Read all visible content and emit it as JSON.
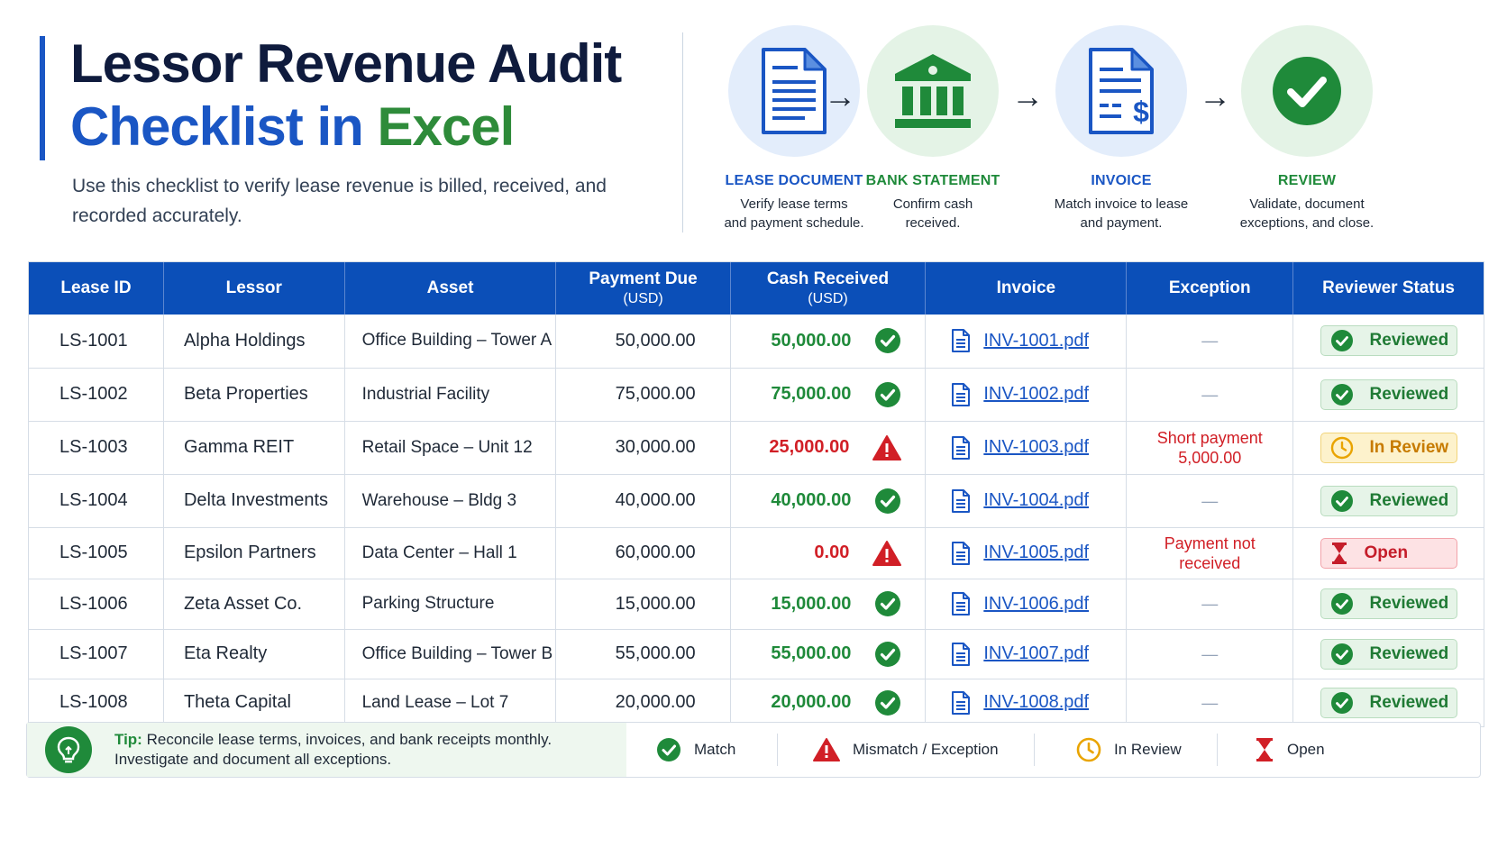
{
  "header": {
    "title_line1": "Lessor Revenue Audit",
    "title_line2_blue": "Checklist in ",
    "title_line2_green": "Excel",
    "subtitle": "Use this checklist to verify lease revenue is billed, received, and recorded accurately."
  },
  "workflow": [
    {
      "title": "LEASE DOCUMENT",
      "desc_line1": "Verify lease terms",
      "desc_line2": "and payment schedule.",
      "icon": "document-icon",
      "color": "#1a56c4"
    },
    {
      "title": "BANK STATEMENT",
      "desc_line1": "Confirm cash",
      "desc_line2": "received.",
      "icon": "bank-icon",
      "color": "#1f8a3a"
    },
    {
      "title": "INVOICE",
      "desc_line1": "Match invoice to lease",
      "desc_line2": "and payment.",
      "icon": "invoice-icon",
      "color": "#1a56c4"
    },
    {
      "title": "REVIEW",
      "desc_line1": "Validate, document",
      "desc_line2": "exceptions, and close.",
      "icon": "check-circle-icon",
      "color": "#1f8a3a"
    }
  ],
  "arrow_glyph": "→",
  "table": {
    "headers": {
      "lease_id": "Lease ID",
      "lessor": "Lessor",
      "asset": "Asset",
      "payment_due": "Payment Due",
      "payment_due_unit": "(USD)",
      "cash_received": "Cash Received",
      "cash_received_unit": "(USD)",
      "invoice": "Invoice",
      "exception": "Exception",
      "reviewer_status": "Reviewer Status"
    },
    "rows": [
      {
        "id": "LS-1001",
        "lessor": "Alpha Holdings",
        "asset": "Office Building – Tower A",
        "due": "50,000.00",
        "cash": "50,000.00",
        "match": true,
        "invoice": "INV-1001.pdf",
        "exception_line1": "—",
        "exception_line2": "",
        "status": "Reviewed",
        "status_type": "reviewed"
      },
      {
        "id": "LS-1002",
        "lessor": "Beta Properties",
        "asset": "Industrial Facility",
        "due": "75,000.00",
        "cash": "75,000.00",
        "match": true,
        "invoice": "INV-1002.pdf",
        "exception_line1": "—",
        "exception_line2": "",
        "status": "Reviewed",
        "status_type": "reviewed"
      },
      {
        "id": "LS-1003",
        "lessor": "Gamma REIT",
        "asset": "Retail Space – Unit 12",
        "due": "30,000.00",
        "cash": "25,000.00",
        "match": false,
        "invoice": "INV-1003.pdf",
        "exception_line1": "Short payment",
        "exception_line2": "5,000.00",
        "status": "In Review",
        "status_type": "inreview"
      },
      {
        "id": "LS-1004",
        "lessor": "Delta Investments",
        "asset": "Warehouse – Bldg 3",
        "due": "40,000.00",
        "cash": "40,000.00",
        "match": true,
        "invoice": "INV-1004.pdf",
        "exception_line1": "—",
        "exception_line2": "",
        "status": "Reviewed",
        "status_type": "reviewed"
      },
      {
        "id": "LS-1005",
        "lessor": "Epsilon Partners",
        "asset": "Data Center – Hall 1",
        "due": "60,000.00",
        "cash": "0.00",
        "match": false,
        "invoice": "INV-1005.pdf",
        "exception_line1": "Payment not",
        "exception_line2": "received",
        "status": "Open",
        "status_type": "open"
      },
      {
        "id": "LS-1006",
        "lessor": "Zeta Asset Co.",
        "asset": "Parking Structure",
        "due": "15,000.00",
        "cash": "15,000.00",
        "match": true,
        "invoice": "INV-1006.pdf",
        "exception_line1": "—",
        "exception_line2": "",
        "status": "Reviewed",
        "status_type": "reviewed"
      },
      {
        "id": "LS-1007",
        "lessor": "Eta Realty",
        "asset": "Office Building – Tower B",
        "due": "55,000.00",
        "cash": "55,000.00",
        "match": true,
        "invoice": "INV-1007.pdf",
        "exception_line1": "—",
        "exception_line2": "",
        "status": "Reviewed",
        "status_type": "reviewed"
      },
      {
        "id": "LS-1008",
        "lessor": "Theta Capital",
        "asset": "Land Lease – Lot 7",
        "due": "20,000.00",
        "cash": "20,000.00",
        "match": true,
        "invoice": "INV-1008.pdf",
        "exception_line1": "—",
        "exception_line2": "",
        "status": "Reviewed",
        "status_type": "reviewed"
      }
    ]
  },
  "footer": {
    "tip_label": "Tip:",
    "tip_line1": "Reconcile lease terms, invoices, and bank receipts monthly.",
    "tip_line2": "Investigate and document all exceptions.",
    "legend": [
      {
        "label": "Match",
        "icon": "check-circle-icon"
      },
      {
        "label": "Mismatch / Exception",
        "icon": "warning-icon"
      },
      {
        "label": "In Review",
        "icon": "clock-icon"
      },
      {
        "label": "Open",
        "icon": "hourglass-icon"
      }
    ]
  },
  "colors": {
    "brand_blue": "#1a56c4",
    "header_blue": "#0b4fb8",
    "green": "#1f8a3a",
    "red": "#d11f26",
    "amber": "#e9a400"
  }
}
